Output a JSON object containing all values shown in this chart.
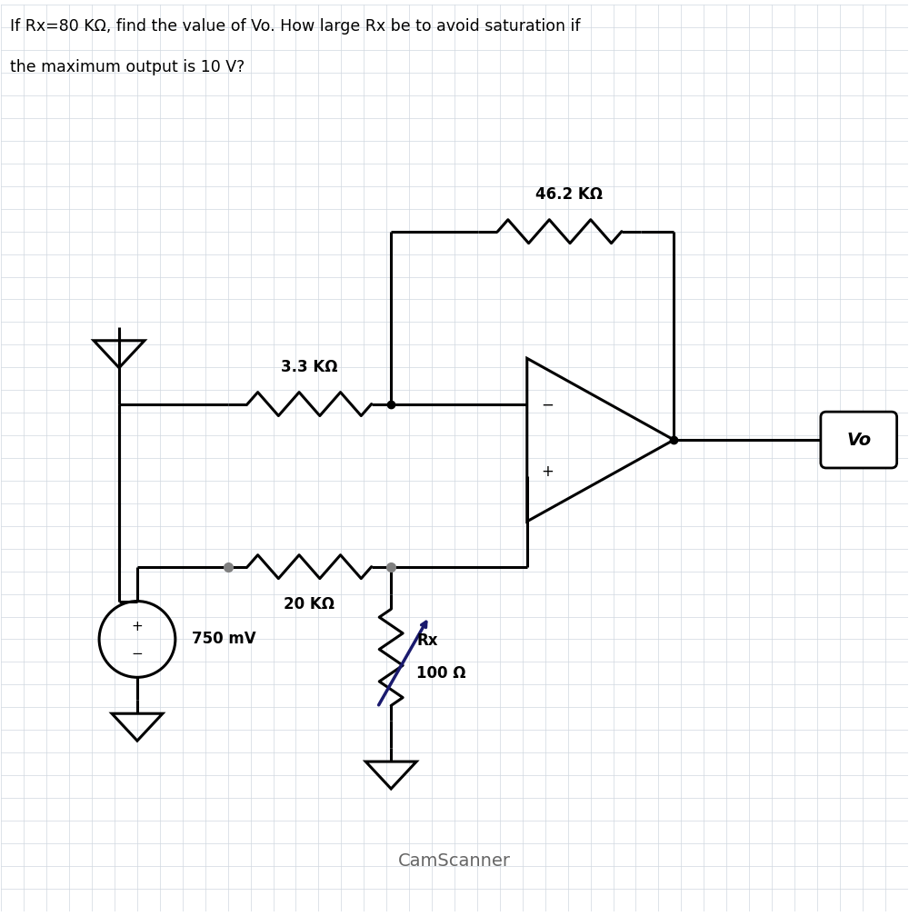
{
  "title_line1": "If Rx=80 KΩ, find the value of Vo. How large Rx be to avoid saturation if",
  "title_line2": "the maximum output is 10 V?",
  "bg_color": "#ffffff",
  "grid_color": "#d0d8e0",
  "line_color": "#000000",
  "label_46k": "46.2 KΩ",
  "label_33k": "3.3 KΩ",
  "label_20k": "20 KΩ",
  "label_rx": "Rx",
  "label_100": "100 Ω",
  "label_750": "750 mV",
  "label_vo": "Vo",
  "camscanner": "CamScanner",
  "dot_color": "#808080"
}
